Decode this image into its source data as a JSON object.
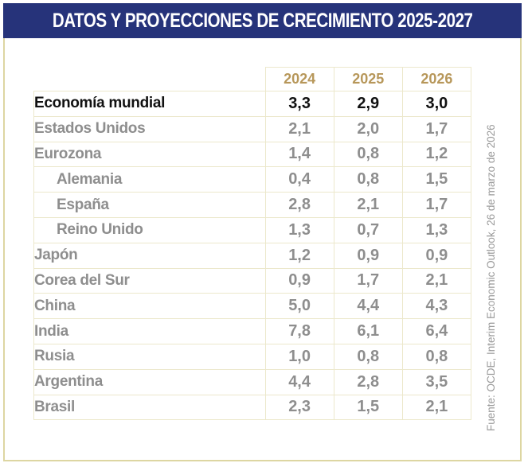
{
  "header": {
    "title": "DATOS Y PROYECCIONES DE CRECIMIENTO 2025-2027"
  },
  "table": {
    "columns": [
      "2024",
      "2025",
      "2026"
    ],
    "rows": [
      {
        "label": "Economía mundial",
        "values": [
          "3,3",
          "2,9",
          "3,0"
        ]
      },
      {
        "label": "Estados Unidos",
        "values": [
          "2,1",
          "2,0",
          "1,7"
        ]
      },
      {
        "label": "Eurozona",
        "values": [
          "1,4",
          "0,8",
          "1,2"
        ]
      },
      {
        "label": "Alemania",
        "values": [
          "0,4",
          "0,8",
          "1,5"
        ]
      },
      {
        "label": "España",
        "values": [
          "2,8",
          "2,1",
          "1,7"
        ]
      },
      {
        "label": "Reino Unido",
        "values": [
          "1,3",
          "0,7",
          "1,3"
        ]
      },
      {
        "label": "Japón",
        "values": [
          "1,2",
          "0,9",
          "0,9"
        ]
      },
      {
        "label": "Corea del Sur",
        "values": [
          "0,9",
          "1,7",
          "2,1"
        ]
      },
      {
        "label": "China",
        "values": [
          "5,0",
          "4,4",
          "4,3"
        ]
      },
      {
        "label": "India",
        "values": [
          "7,8",
          "6,1",
          "6,4"
        ]
      },
      {
        "label": "Rusia",
        "values": [
          "1,0",
          "0,8",
          "0,8"
        ]
      },
      {
        "label": "Argentina",
        "values": [
          "4,4",
          "2,8",
          "3,5"
        ]
      },
      {
        "label": "Brasil",
        "values": [
          "2,3",
          "1,5",
          "2,1"
        ]
      }
    ]
  },
  "source": "Fuente: OCDE, Interim Economic Outlook, 26 de marzo de 2026",
  "colors": {
    "header_bg": "#26337a",
    "year_header": "#b7975a",
    "highlight_text": "#111111",
    "muted_text": "#8e8e8e",
    "border": "#ddd6a2"
  }
}
